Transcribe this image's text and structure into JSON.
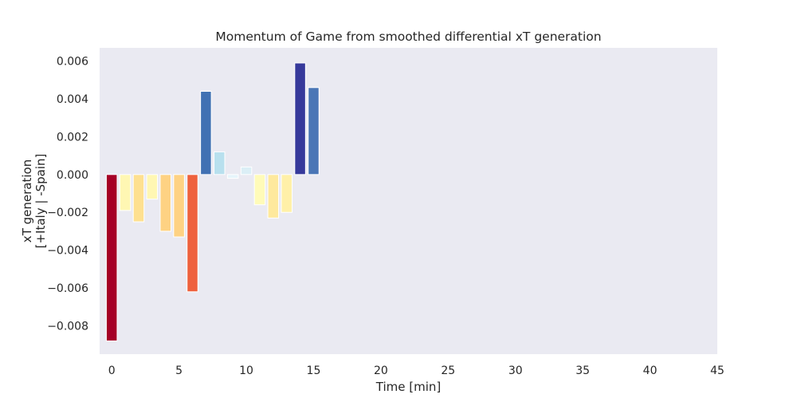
{
  "chart_data": {
    "type": "bar",
    "title": "Momentum of Game from smoothed differential xT generation",
    "xlabel": "Time [min]",
    "ylabel_line1": "xT generation",
    "ylabel_line2": "[+Italy | -Spain]",
    "xlim": [
      -0.9,
      45
    ],
    "ylim": [
      -0.0095,
      0.0067
    ],
    "xticks": [
      0,
      5,
      10,
      15,
      20,
      25,
      30,
      35,
      40,
      45
    ],
    "yticks": [
      -0.008,
      -0.006,
      -0.004,
      -0.002,
      0.0,
      0.002,
      0.004,
      0.006
    ],
    "ytick_labels": [
      "−0.008",
      "−0.006",
      "−0.004",
      "−0.002",
      "0.000",
      "0.002",
      "0.004",
      "0.006"
    ],
    "grid": false,
    "background_color": "#eaeaf2",
    "bar_edge_color": "#ffffff",
    "colormap": "RdYlBu",
    "x": [
      0,
      1,
      2,
      3,
      4,
      5,
      6,
      7,
      8,
      9,
      10,
      11,
      12,
      13,
      14,
      15
    ],
    "values": [
      -0.0088,
      -0.0019,
      -0.0025,
      -0.0013,
      -0.003,
      -0.0033,
      -0.0062,
      0.0044,
      0.0012,
      -0.0002,
      0.0004,
      -0.0016,
      -0.0023,
      -0.002,
      0.0059,
      0.0046
    ],
    "bar_colors": [
      "#a50026",
      "#fff7b3",
      "#fee090",
      "#fff7b3",
      "#fed283",
      "#fed283",
      "#ee613d",
      "#4071b3",
      "#b8e0ee",
      "#e6f5fb",
      "#dbeff6",
      "#fffbb9",
      "#fee99d",
      "#fff0a8",
      "#36399b",
      "#4a76b6"
    ]
  }
}
